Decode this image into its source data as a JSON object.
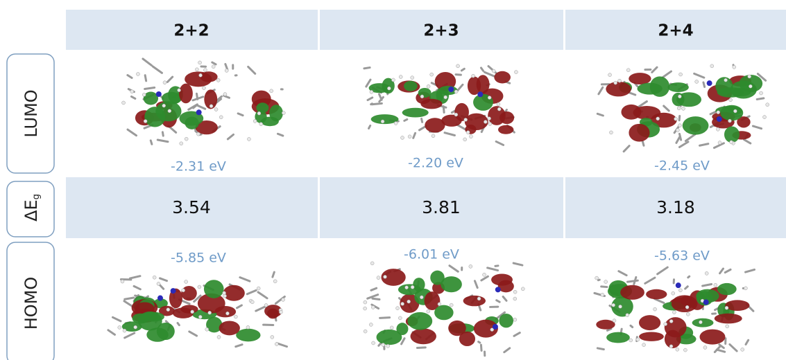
{
  "columns": [
    "2+2",
    "2+3",
    "2+4"
  ],
  "rows": {
    "lumo": {
      "label": "LUMO",
      "energies": [
        "-2.31 eV",
        "-2.20 eV",
        "-2.45 eV"
      ]
    },
    "gap": {
      "label": "ΔE",
      "label_subscript": "g",
      "values": [
        3.54,
        3.81,
        3.18
      ]
    },
    "homo": {
      "label": "HOMO",
      "energies": [
        "-5.85 eV",
        "-6.01 eV",
        "-5.63 eV"
      ]
    }
  }
}
